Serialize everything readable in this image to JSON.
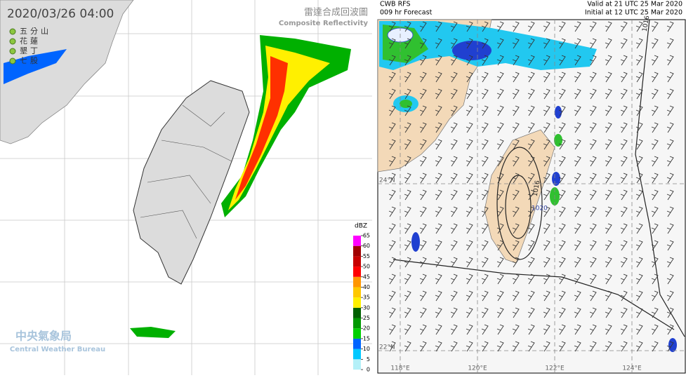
{
  "left_panel": {
    "timestamp": "2020/03/26  04:00",
    "title": "雷達合成回波圖",
    "subtitle": "Composite Reflectivity",
    "stations": [
      "五分山",
      "花蓮",
      "墾丁",
      "七股"
    ],
    "colorbar": {
      "unit": "dBZ",
      "ticks": [
        0,
        5,
        10,
        15,
        20,
        25,
        30,
        35,
        40,
        45,
        50,
        55,
        60,
        65
      ],
      "colors": [
        "#b4f0f8",
        "#00c8ff",
        "#0064ff",
        "#00d000",
        "#009800",
        "#006000",
        "#fff000",
        "#ffc800",
        "#ff9600",
        "#ff0000",
        "#c80000",
        "#a00000",
        "#ff00ff"
      ]
    },
    "logo": {
      "name": "中央氣象局",
      "name_en": "Central Weather Bureau"
    }
  },
  "right_panel": {
    "model": "CWB RFS",
    "forecast": "009 hr Forecast",
    "valid": "Valid at 21 UTC 25 Mar 2020",
    "initial": "Initial at 12 UTC 25 Mar 2020",
    "isobar_labels": [
      "1016",
      "1016",
      "1020"
    ],
    "lat_labels": [
      "24°N",
      "22°N"
    ],
    "lon_labels": [
      "118°E",
      "120°E",
      "122°E",
      "124°E"
    ]
  }
}
